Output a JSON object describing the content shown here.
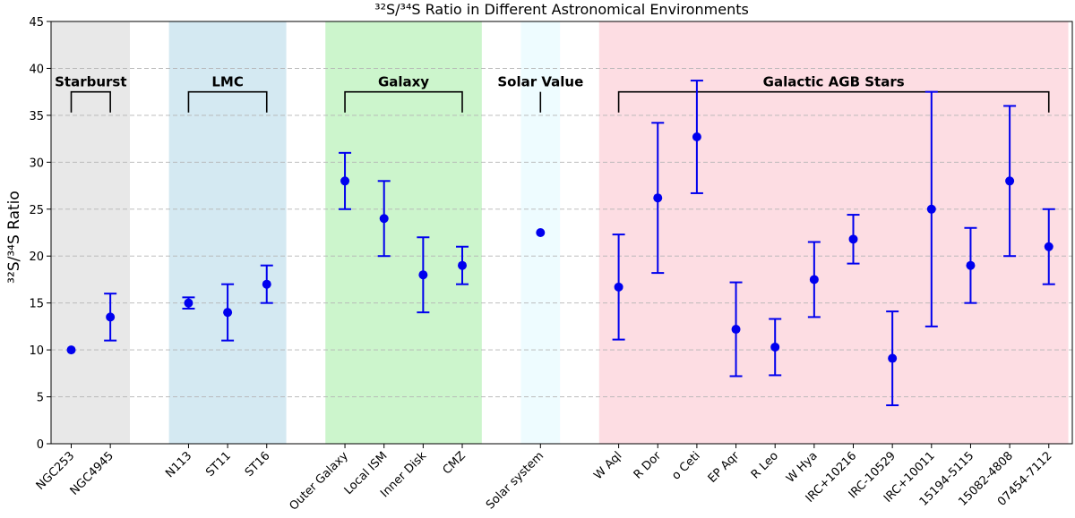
{
  "chart_data": {
    "type": "scatter",
    "title": "³²S/³⁴S Ratio in Different Astronomical Environments",
    "xlabel": "",
    "ylabel": "³²S/³⁴S Ratio",
    "ylim": [
      0,
      45
    ],
    "yticks": [
      0,
      5,
      10,
      15,
      20,
      25,
      30,
      35,
      40,
      45
    ],
    "grid": "horizontal dashed",
    "marker_color": "#0000ee",
    "categories": [
      "NGC253",
      "NGC4945",
      "N113",
      "ST11",
      "ST16",
      "Outer Galaxy",
      "Local ISM",
      "Inner Disk",
      "CMZ",
      "Solar system",
      "W Aql",
      "R Dor",
      "o Ceti",
      "EP Aqr",
      "R Leo",
      "W Hya",
      "IRC+10216",
      "IRC-10529",
      "IRC+10011",
      "15194-5115",
      "15082-4808",
      "07454-7112"
    ],
    "series": [
      {
        "name": "³²S/³⁴S",
        "points": [
          {
            "label": "NGC253",
            "slot": 0,
            "value": 10,
            "err_low": null,
            "err_high": null
          },
          {
            "label": "NGC4945",
            "slot": 1,
            "value": 13.5,
            "err_low": 11,
            "err_high": 16
          },
          {
            "label": "N113",
            "slot": 3,
            "value": 15,
            "err_low": 14.4,
            "err_high": 15.6
          },
          {
            "label": "ST11",
            "slot": 4,
            "value": 14,
            "err_low": 11,
            "err_high": 17
          },
          {
            "label": "ST16",
            "slot": 5,
            "value": 17,
            "err_low": 15,
            "err_high": 19
          },
          {
            "label": "Outer Galaxy",
            "slot": 7,
            "value": 28,
            "err_low": 25,
            "err_high": 31
          },
          {
            "label": "Local ISM",
            "slot": 8,
            "value": 24,
            "err_low": 20,
            "err_high": 28
          },
          {
            "label": "Inner Disk",
            "slot": 9,
            "value": 18,
            "err_low": 14,
            "err_high": 22
          },
          {
            "label": "CMZ",
            "slot": 10,
            "value": 19,
            "err_low": 17,
            "err_high": 21
          },
          {
            "label": "Solar system",
            "slot": 12,
            "value": 22.5,
            "err_low": null,
            "err_high": null
          },
          {
            "label": "W Aql",
            "slot": 14,
            "value": 16.7,
            "err_low": 11.1,
            "err_high": 22.3
          },
          {
            "label": "R Dor",
            "slot": 15,
            "value": 26.2,
            "err_low": 18.2,
            "err_high": 34.2
          },
          {
            "label": "o Ceti",
            "slot": 16,
            "value": 32.7,
            "err_low": 26.7,
            "err_high": 38.7
          },
          {
            "label": "EP Aqr",
            "slot": 17,
            "value": 12.2,
            "err_low": 7.2,
            "err_high": 17.2
          },
          {
            "label": "R Leo",
            "slot": 18,
            "value": 10.3,
            "err_low": 7.3,
            "err_high": 13.3
          },
          {
            "label": "W Hya",
            "slot": 19,
            "value": 17.5,
            "err_low": 13.5,
            "err_high": 21.5
          },
          {
            "label": "IRC+10216",
            "slot": 20,
            "value": 21.8,
            "err_low": 19.2,
            "err_high": 24.4
          },
          {
            "label": "IRC-10529",
            "slot": 21,
            "value": 9.1,
            "err_low": 4.1,
            "err_high": 14.1
          },
          {
            "label": "IRC+10011",
            "slot": 22,
            "value": 25,
            "err_low": 12.5,
            "err_high": 37.5
          },
          {
            "label": "15194-5115",
            "slot": 23,
            "value": 19,
            "err_low": 15,
            "err_high": 23
          },
          {
            "label": "15082-4808",
            "slot": 24,
            "value": 28,
            "err_low": 20,
            "err_high": 36
          },
          {
            "label": "07454-7112",
            "slot": 25,
            "value": 21,
            "err_low": 17,
            "err_high": 25
          }
        ]
      }
    ],
    "groups": [
      {
        "label": "Starburst",
        "slot_start": 0,
        "slot_end": 1,
        "color": "#e8e8e8"
      },
      {
        "label": "LMC",
        "slot_start": 3,
        "slot_end": 5,
        "color": "#d4e9f2"
      },
      {
        "label": "Galaxy",
        "slot_start": 7,
        "slot_end": 10,
        "color": "#ccf5cc"
      },
      {
        "label": "Solar Value",
        "slot_start": 12,
        "slot_end": 12,
        "color": "#eefcff"
      },
      {
        "label": "Galactic AGB Stars",
        "slot_start": 14,
        "slot_end": 25,
        "color": "#fddde3"
      }
    ]
  }
}
